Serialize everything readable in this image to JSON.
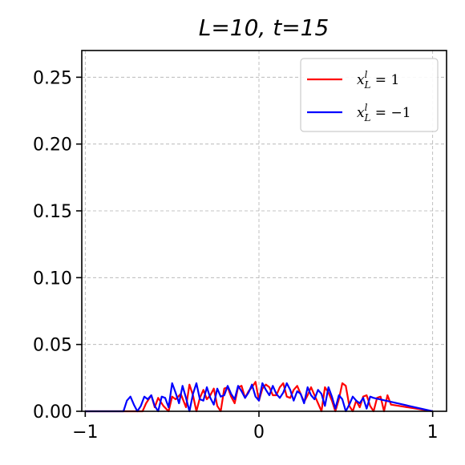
{
  "chart_data": {
    "type": "line",
    "title": "L=10, t=15",
    "xlabel": "",
    "ylabel": "",
    "xlim": [
      -1.02,
      1.08
    ],
    "ylim": [
      0,
      0.27
    ],
    "grid": true,
    "legend_position": "top-right",
    "xticks": [
      -1,
      0,
      1
    ],
    "xtick_labels": [
      "−1",
      "0",
      "1"
    ],
    "yticks": [
      0.0,
      0.05,
      0.1,
      0.15,
      0.2,
      0.25
    ],
    "ytick_labels": [
      "0.00",
      "0.05",
      "0.10",
      "0.15",
      "0.20",
      "0.25"
    ],
    "series": [
      {
        "name": "x_L^l = 1",
        "legend_label": {
          "base": "x",
          "sup": "l",
          "sub": "L",
          "rest": " = 1"
        },
        "color": "#ff0000",
        "x": [
          -1.0,
          -0.67,
          -0.65,
          -0.62,
          -0.6,
          -0.58,
          -0.55,
          -0.52,
          -0.5,
          -0.48,
          -0.45,
          -0.42,
          -0.4,
          -0.38,
          -0.36,
          -0.34,
          -0.32,
          -0.3,
          -0.28,
          -0.26,
          -0.24,
          -0.22,
          -0.2,
          -0.18,
          -0.16,
          -0.14,
          -0.12,
          -0.1,
          -0.08,
          -0.06,
          -0.04,
          -0.02,
          0.0,
          0.02,
          0.04,
          0.06,
          0.08,
          0.1,
          0.12,
          0.14,
          0.16,
          0.18,
          0.2,
          0.22,
          0.24,
          0.26,
          0.28,
          0.3,
          0.32,
          0.34,
          0.36,
          0.38,
          0.4,
          0.42,
          0.44,
          0.46,
          0.48,
          0.5,
          0.52,
          0.54,
          0.56,
          0.58,
          0.6,
          0.62,
          0.64,
          0.66,
          0.68,
          0.7,
          0.72,
          0.74,
          0.76,
          1.0
        ],
        "y": [
          0.0,
          0.0,
          0.006,
          0.012,
          0.003,
          0.01,
          0.004,
          0.0,
          0.011,
          0.009,
          0.013,
          0.003,
          0.02,
          0.012,
          0.0,
          0.01,
          0.016,
          0.009,
          0.012,
          0.017,
          0.004,
          0.0,
          0.017,
          0.018,
          0.011,
          0.006,
          0.018,
          0.019,
          0.01,
          0.015,
          0.018,
          0.022,
          0.008,
          0.017,
          0.02,
          0.018,
          0.012,
          0.012,
          0.018,
          0.021,
          0.011,
          0.01,
          0.016,
          0.019,
          0.013,
          0.007,
          0.012,
          0.018,
          0.012,
          0.006,
          0.0,
          0.018,
          0.014,
          0.008,
          0.0,
          0.009,
          0.021,
          0.019,
          0.004,
          0.0,
          0.008,
          0.003,
          0.011,
          0.012,
          0.004,
          0.0,
          0.01,
          0.011,
          0.0,
          0.012,
          0.005,
          0.0
        ]
      },
      {
        "name": "x_L^l = -1",
        "legend_label": {
          "base": "x",
          "sup": "l",
          "sub": "L",
          "rest": " = −1"
        },
        "color": "#0000ff",
        "x": [
          -1.0,
          -0.78,
          -0.76,
          -0.74,
          -0.72,
          -0.7,
          -0.68,
          -0.66,
          -0.64,
          -0.62,
          -0.6,
          -0.58,
          -0.56,
          -0.54,
          -0.52,
          -0.5,
          -0.48,
          -0.46,
          -0.44,
          -0.42,
          -0.4,
          -0.38,
          -0.36,
          -0.34,
          -0.32,
          -0.3,
          -0.28,
          -0.26,
          -0.24,
          -0.22,
          -0.2,
          -0.18,
          -0.16,
          -0.14,
          -0.12,
          -0.1,
          -0.08,
          -0.06,
          -0.04,
          -0.02,
          0.0,
          0.02,
          0.04,
          0.06,
          0.08,
          0.1,
          0.12,
          0.14,
          0.16,
          0.18,
          0.2,
          0.22,
          0.24,
          0.26,
          0.28,
          0.3,
          0.32,
          0.34,
          0.36,
          0.38,
          0.4,
          0.42,
          0.44,
          0.46,
          0.48,
          0.5,
          0.52,
          0.54,
          0.56,
          0.58,
          0.6,
          0.62,
          0.64,
          0.66,
          1.0
        ],
        "y": [
          0.0,
          0.0,
          0.008,
          0.011,
          0.005,
          0.0,
          0.004,
          0.011,
          0.009,
          0.012,
          0.004,
          0.0,
          0.011,
          0.01,
          0.003,
          0.021,
          0.014,
          0.006,
          0.019,
          0.01,
          0.0,
          0.013,
          0.021,
          0.009,
          0.008,
          0.018,
          0.01,
          0.005,
          0.017,
          0.011,
          0.012,
          0.019,
          0.013,
          0.009,
          0.019,
          0.015,
          0.01,
          0.014,
          0.02,
          0.011,
          0.008,
          0.021,
          0.016,
          0.012,
          0.019,
          0.013,
          0.01,
          0.014,
          0.021,
          0.016,
          0.008,
          0.015,
          0.013,
          0.006,
          0.018,
          0.012,
          0.009,
          0.016,
          0.013,
          0.004,
          0.018,
          0.011,
          0.002,
          0.012,
          0.009,
          0.0,
          0.005,
          0.011,
          0.008,
          0.006,
          0.01,
          0.002,
          0.011,
          0.01,
          0.0
        ]
      }
    ]
  }
}
